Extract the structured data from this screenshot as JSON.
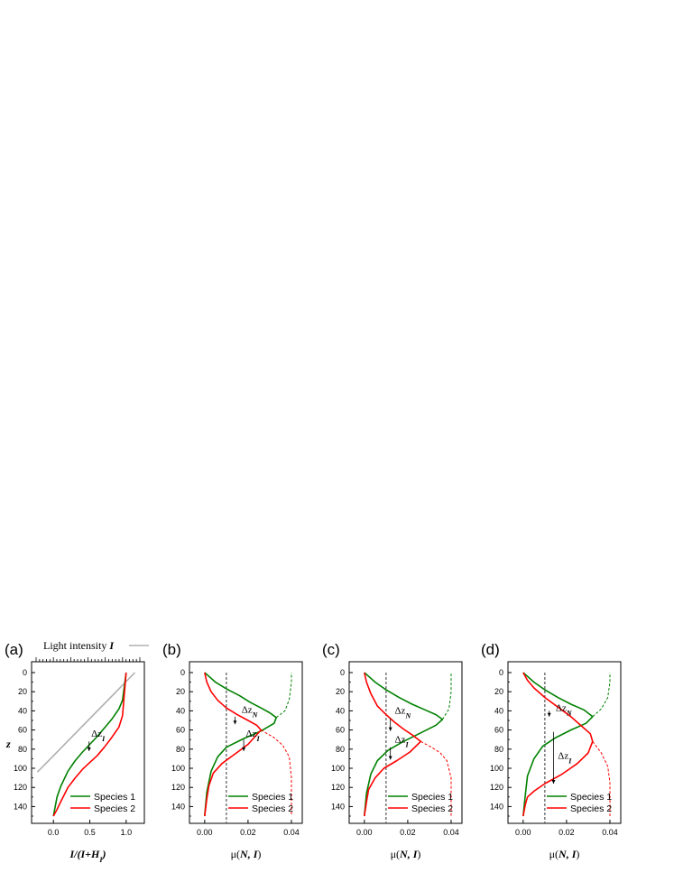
{
  "colors": {
    "species1": "#008000",
    "species2": "#ff0000",
    "light": "#b0b0b0",
    "axis": "#000000",
    "dashed": "#555555"
  },
  "top_legend": {
    "text": "Light intensity",
    "symbol": "I"
  },
  "chart_data": [
    {
      "type": "line",
      "panel_label": "(a)",
      "ylabel": "z",
      "xlabel_parts": [
        "I/(I+H",
        "I",
        ")"
      ],
      "xticks": [
        "0.0",
        "0.5",
        "1.0"
      ],
      "xlim": [
        -0.3,
        1.25
      ],
      "yticks": [
        "0",
        "20",
        "40",
        "60",
        "80",
        "100",
        "120",
        "140"
      ],
      "ylim": [
        0,
        150
      ],
      "y_inverted": true,
      "series": [
        {
          "name": "Species 1",
          "x": [
            0.0,
            0.05,
            0.1,
            0.2,
            0.3,
            0.4,
            0.5,
            0.6,
            0.7,
            0.8,
            0.9,
            0.95,
            1.0
          ],
          "y": [
            150,
            130,
            119,
            103,
            92,
            83,
            75,
            67,
            58,
            49,
            38,
            29,
            0
          ]
        },
        {
          "name": "Species 2",
          "x": [
            0.0,
            0.05,
            0.1,
            0.2,
            0.3,
            0.4,
            0.5,
            0.6,
            0.7,
            0.8,
            0.9,
            0.95,
            1.0
          ],
          "y": [
            150,
            143,
            135,
            120,
            110,
            101,
            94,
            87,
            78,
            68,
            57,
            45,
            0
          ]
        }
      ],
      "light": {
        "x": [
          -0.22,
          1.12
        ],
        "y": [
          104,
          0
        ]
      },
      "annotation": {
        "label": "Δz",
        "sub": "I",
        "x": 0.49,
        "y1": 72,
        "y2": 82,
        "tx": 0.52,
        "ty": 67
      }
    },
    {
      "type": "line",
      "panel_label": "(b)",
      "xlabel_parts": [
        "μ(",
        "N, I",
        ")"
      ],
      "xticks": [
        "0.00",
        "0.02",
        "0.04"
      ],
      "xlim": [
        -0.007,
        0.045
      ],
      "yticks": [
        "0",
        "20",
        "40",
        "60",
        "80",
        "100",
        "120",
        "140"
      ],
      "ylim": [
        0,
        150
      ],
      "y_inverted": true,
      "dashed_x": 0.01,
      "series": [
        {
          "name": "Species 1",
          "solid": {
            "x": [
              0.0,
              0.002,
              0.005,
              0.01,
              0.016,
              0.021,
              0.026,
              0.03,
              0.033,
              0.032,
              0.026,
              0.018,
              0.01,
              0.006,
              0.003,
              0.001,
              0.0
            ],
            "y": [
              0,
              4,
              10,
              17,
              24,
              31,
              37,
              42,
              47,
              53,
              61,
              69,
              78,
              88,
              103,
              125,
              150
            ]
          },
          "dashed": {
            "x": [
              0.033,
              0.037,
              0.039,
              0.04,
              0.04
            ],
            "y": [
              47,
              40,
              28,
              10,
              0
            ]
          }
        },
        {
          "name": "Species 2",
          "solid": {
            "x": [
              0.0,
              0.001,
              0.003,
              0.006,
              0.01,
              0.015,
              0.02,
              0.024,
              0.026,
              0.02,
              0.014,
              0.008,
              0.004,
              0.002,
              0.001,
              0.0
            ],
            "y": [
              0,
              10,
              20,
              29,
              37,
              44,
              50,
              55,
              60,
              75,
              85,
              95,
              105,
              118,
              132,
              150
            ]
          },
          "dashed": {
            "x": [
              0.026,
              0.032,
              0.036,
              0.039,
              0.04,
              0.04
            ],
            "y": [
              60,
              68,
              76,
              88,
              110,
              150
            ]
          }
        }
      ],
      "annotations": [
        {
          "label": "Δz",
          "sub": "N",
          "x": 0.014,
          "y1": 46,
          "y2": 54,
          "tx": 0.017,
          "ty": 42
        },
        {
          "label": "Δz",
          "sub": "I",
          "x": 0.018,
          "y1": 70,
          "y2": 82,
          "tx": 0.019,
          "ty": 67
        }
      ]
    },
    {
      "type": "line",
      "panel_label": "(c)",
      "xlabel_parts": [
        "μ(",
        "N, I",
        ")"
      ],
      "xticks": [
        "0.00",
        "0.02",
        "0.04"
      ],
      "xlim": [
        -0.007,
        0.045
      ],
      "yticks": [
        "0",
        "20",
        "40",
        "60",
        "80",
        "100",
        "120",
        "140"
      ],
      "ylim": [
        0,
        150
      ],
      "y_inverted": true,
      "dashed_x": 0.01,
      "series": [
        {
          "name": "Species 1",
          "solid": {
            "x": [
              0.0,
              0.002,
              0.005,
              0.01,
              0.016,
              0.022,
              0.028,
              0.033,
              0.036,
              0.033,
              0.026,
              0.018,
              0.011,
              0.006,
              0.003,
              0.001,
              0.0
            ],
            "y": [
              0,
              4,
              10,
              18,
              26,
              33,
              39,
              44,
              49,
              55,
              63,
              72,
              81,
              92,
              106,
              126,
              150
            ]
          },
          "dashed": {
            "x": [
              0.036,
              0.039,
              0.04,
              0.04
            ],
            "y": [
              49,
              38,
              20,
              0
            ]
          }
        },
        {
          "name": "Species 2",
          "solid": {
            "x": [
              0.0,
              0.001,
              0.003,
              0.006,
              0.01,
              0.014,
              0.018,
              0.022,
              0.026,
              0.021,
              0.015,
              0.009,
              0.005,
              0.002,
              0.001,
              0.0
            ],
            "y": [
              0,
              10,
              22,
              35,
              44,
              52,
              59,
              65,
              72,
              83,
              92,
              100,
              110,
              122,
              135,
              150
            ]
          },
          "dashed": {
            "x": [
              0.026,
              0.031,
              0.035,
              0.038,
              0.04,
              0.04
            ],
            "y": [
              72,
              78,
              84,
              92,
              110,
              150
            ]
          }
        }
      ],
      "annotations": [
        {
          "label": "Δz",
          "sub": "N",
          "x": 0.012,
          "y1": 48,
          "y2": 61,
          "tx": 0.014,
          "ty": 43
        },
        {
          "label": "Δz",
          "sub": "I",
          "x": 0.012,
          "y1": 78,
          "y2": 91,
          "tx": 0.014,
          "ty": 73
        }
      ]
    },
    {
      "type": "line",
      "panel_label": "(d)",
      "xlabel_parts": [
        "μ(",
        "N, I",
        ")"
      ],
      "xticks": [
        "0.00",
        "0.02",
        "0.04"
      ],
      "xlim": [
        -0.007,
        0.045
      ],
      "yticks": [
        "0",
        "20",
        "40",
        "60",
        "80",
        "100",
        "120",
        "140"
      ],
      "ylim": [
        0,
        150
      ],
      "y_inverted": true,
      "dashed_x": 0.01,
      "series": [
        {
          "name": "Species 1",
          "solid": {
            "x": [
              0.0,
              0.002,
              0.005,
              0.01,
              0.016,
              0.022,
              0.028,
              0.032,
              0.029,
              0.022,
              0.015,
              0.009,
              0.005,
              0.002,
              0.001,
              0.0
            ],
            "y": [
              0,
              4,
              10,
              18,
              26,
              33,
              39,
              46,
              53,
              60,
              68,
              77,
              90,
              108,
              128,
              150
            ]
          },
          "dashed": {
            "x": [
              0.032,
              0.036,
              0.039,
              0.04,
              0.04
            ],
            "y": [
              46,
              38,
              26,
              10,
              0
            ]
          }
        },
        {
          "name": "Species 2",
          "solid": {
            "x": [
              0.0,
              0.002,
              0.005,
              0.01,
              0.016,
              0.022,
              0.027,
              0.031,
              0.032,
              0.03,
              0.025,
              0.018,
              0.01,
              0.005,
              0.002,
              0.001,
              0.0
            ],
            "y": [
              0,
              8,
              16,
              26,
              36,
              46,
              56,
              64,
              72,
              84,
              95,
              106,
              116,
              124,
              130,
              138,
              150
            ]
          },
          "dashed": {
            "x": [
              0.032,
              0.036,
              0.039,
              0.04,
              0.04
            ],
            "y": [
              72,
              84,
              98,
              115,
              150
            ]
          }
        }
      ],
      "annotations": [
        {
          "label": "Δz",
          "sub": "N",
          "x": 0.012,
          "y1": 40,
          "y2": 46,
          "tx": 0.015,
          "ty": 40
        },
        {
          "label": "Δz",
          "sub": "I",
          "x": 0.014,
          "y1": 62,
          "y2": 116,
          "tx": 0.016,
          "ty": 90
        }
      ]
    }
  ]
}
